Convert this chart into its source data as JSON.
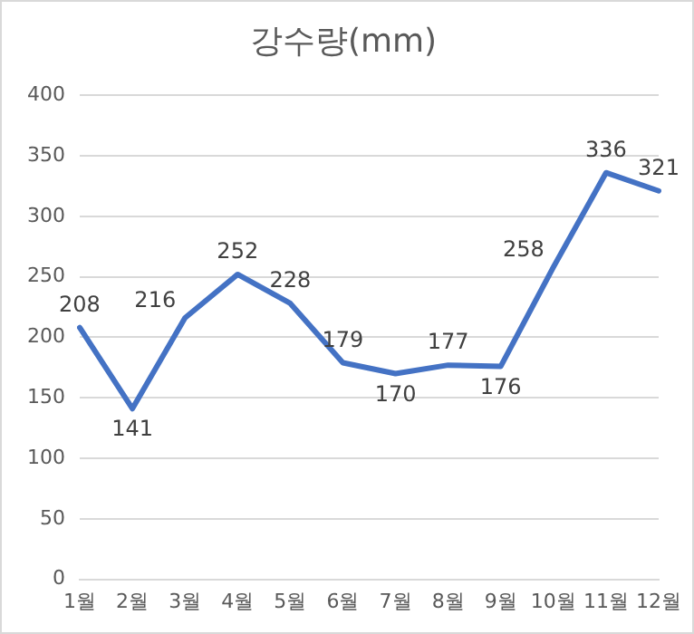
{
  "chart_data": {
    "type": "line",
    "title": "강수량(mm)",
    "categories": [
      "1월",
      "2월",
      "3월",
      "4월",
      "5월",
      "6월",
      "7월",
      "8월",
      "9월",
      "10월",
      "11월",
      "12월"
    ],
    "series": [
      {
        "color": "#4472c4",
        "values": [
          208,
          141,
          216,
          252,
          228,
          179,
          170,
          177,
          176,
          258,
          336,
          321
        ]
      }
    ],
    "ylim": [
      0,
      400
    ],
    "yticks": [
      0,
      50,
      100,
      150,
      200,
      250,
      300,
      350,
      400
    ],
    "grid": "y",
    "legend": false,
    "marker": "none",
    "line_style": "solid",
    "data_labels": true
  }
}
